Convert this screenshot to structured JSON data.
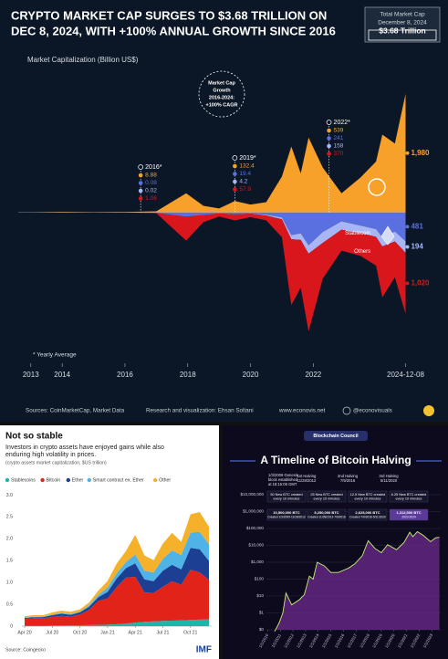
{
  "chart_data": [
    {
      "type": "area",
      "title": [
        "CRYPTO MARKET CAP SURGES TO $3.68 TRILLION ON",
        "DEC 8, 2024, WITH +100% ANNUAL GROWTH SINCE 2016"
      ],
      "total_box": [
        "Total Market Cap",
        "December 8, 2024",
        "$3.68 Trillion"
      ],
      "subtitle": "Market Capitalization (Billion US$)",
      "growth_note": [
        "Market Cap",
        "Growth",
        "2016-2024:",
        "+100% CAGR"
      ],
      "footnote": "* Yearly Average",
      "sources": "Sources: CoinMarketCap, Market Data",
      "credit": "Research and visualization: Ehsan Soltani",
      "website": "www.econovis.net",
      "handle": "@econovisuals",
      "x": [
        2013,
        2014,
        2015,
        2016,
        2017,
        2017.95,
        2018.5,
        2019,
        2019.5,
        2020,
        2020.5,
        2021,
        2021.3,
        2021.6,
        2021.85,
        2022.3,
        2022.9,
        2023.5,
        2024,
        2024.2,
        2024.6,
        2024.94
      ],
      "xlim": [
        2012.6,
        2025.1
      ],
      "xticks": [
        2013,
        2014,
        2016,
        2018,
        2020,
        2022,
        {
          "value": 2024.94,
          "label": "2024-12-08"
        }
      ],
      "ylim": [
        -2400,
        2100
      ],
      "series": [
        {
          "color": "#f7a12b",
          "side": "above",
          "values": [
            1.5,
            8,
            3.5,
            7,
            17,
            320,
            110,
            65,
            190,
            130,
            170,
            600,
            1100,
            650,
            1250,
            750,
            320,
            580,
            850,
            1300,
            1150,
            1980
          ],
          "value_labels": [
            null,
            null,
            null,
            null,
            null,
            null,
            null,
            null,
            null,
            null,
            null,
            null,
            null,
            null,
            null,
            null,
            null,
            null,
            null,
            null,
            null,
            "1,980"
          ]
        },
        {
          "color": "#5a6fe0",
          "side": "below",
          "values": [
            0,
            0,
            0,
            0.9,
            9,
            70,
            40,
            15,
            30,
            15,
            40,
            85,
            380,
            350,
            550,
            330,
            150,
            220,
            280,
            420,
            320,
            481
          ]
        },
        {
          "name": "Stablecoin",
          "color": "#a9b6f5",
          "side": "below",
          "values": [
            0,
            0,
            0,
            0.01,
            1,
            1.5,
            2.5,
            4,
            4,
            5,
            12,
            30,
            70,
            110,
            140,
            180,
            140,
            125,
            130,
            150,
            165,
            194
          ]
        },
        {
          "name": "Others",
          "color": "#d9161c",
          "side": "below",
          "values": [
            0.2,
            0.7,
            0.5,
            0.4,
            5,
            400,
            120,
            50,
            100,
            60,
            80,
            300,
            1100,
            800,
            1300,
            600,
            350,
            380,
            480,
            850,
            600,
            1020
          ],
          "value_labels": [
            null,
            null,
            null,
            null,
            null,
            null,
            null,
            null,
            null,
            null,
            null,
            null,
            null,
            null,
            null,
            null,
            null,
            null,
            null,
            null,
            null,
            "1,020"
          ]
        }
      ],
      "annotations": [
        {
          "label": "2016*",
          "x": 2016.5,
          "values": [
            8.88,
            0.08,
            0.02,
            1.06
          ]
        },
        {
          "label": "2019*",
          "x": 2019.5,
          "values": [
            132.4,
            19.4,
            4.2,
            57.9
          ]
        },
        {
          "label": "2022*",
          "x": 2022.5,
          "values": [
            539,
            241,
            158,
            370
          ]
        }
      ]
    },
    {
      "type": "area",
      "title": "Not so stable",
      "subtitle": [
        "Investors in crypto assets have enjoyed gains while also",
        "enduring high volatility in prices."
      ],
      "note": "(crypto assets market capitalization, $US trillion)",
      "source": "Source: Coingecko",
      "logo": "IMF",
      "grid": false,
      "categories": [
        "Apr 20",
        null,
        null,
        "Jul 20",
        null,
        null,
        "Oct 20",
        null,
        null,
        "Jan 21",
        null,
        null,
        "Apr 21",
        null,
        null,
        "Jul 21",
        null,
        null,
        "Oct 21",
        null,
        null
      ],
      "ylim": [
        0,
        3.05
      ],
      "yticks": [
        0,
        0.5,
        {
          "value": 1,
          "label": "1.0"
        },
        1.5,
        {
          "value": 2,
          "label": "2.0"
        },
        2.5,
        {
          "value": 3,
          "label": "3.0"
        }
      ],
      "series": [
        {
          "name": "Stablecoins",
          "color": "#1fb5a8",
          "values": [
            0.008,
            0.01,
            0.011,
            0.012,
            0.014,
            0.018,
            0.02,
            0.024,
            0.028,
            0.033,
            0.045,
            0.06,
            0.08,
            0.1,
            0.11,
            0.12,
            0.125,
            0.13,
            0.14,
            0.15,
            0.155
          ]
        },
        {
          "name": "Bitcoin",
          "color": "#e2231a",
          "values": [
            0.16,
            0.17,
            0.17,
            0.2,
            0.22,
            0.2,
            0.25,
            0.35,
            0.55,
            0.6,
            0.85,
            1.05,
            1.05,
            0.67,
            0.65,
            0.78,
            0.9,
            0.82,
            1.15,
            1.08,
            0.9
          ]
        },
        {
          "name": "Ether",
          "color": "#1c3f94",
          "values": [
            0.02,
            0.025,
            0.025,
            0.04,
            0.05,
            0.04,
            0.045,
            0.07,
            0.085,
            0.15,
            0.2,
            0.22,
            0.31,
            0.3,
            0.27,
            0.37,
            0.38,
            0.35,
            0.5,
            0.53,
            0.44
          ]
        },
        {
          "name": "Smart contract ex. Ether",
          "color": "#4fb3e8",
          "values": [
            0.01,
            0.01,
            0.01,
            0.015,
            0.02,
            0.02,
            0.02,
            0.03,
            0.05,
            0.1,
            0.12,
            0.14,
            0.2,
            0.2,
            0.2,
            0.27,
            0.33,
            0.33,
            0.35,
            0.4,
            0.38
          ]
        },
        {
          "name": "Other",
          "color": "#f6b12a",
          "values": [
            0.03,
            0.035,
            0.035,
            0.045,
            0.05,
            0.05,
            0.05,
            0.07,
            0.1,
            0.15,
            0.22,
            0.25,
            0.45,
            0.35,
            0.28,
            0.35,
            0.4,
            0.3,
            0.42,
            0.45,
            0.4
          ]
        }
      ]
    },
    {
      "type": "line",
      "title": "A Timeline of Bitcoin Halving",
      "badge": "Blockchain Council",
      "log": true,
      "grid": true,
      "genesis": [
        "1/3/2009 Genesis",
        "block established",
        "at 18:15:05 GMT"
      ],
      "halvings": [
        [
          "1st Halving",
          "11/28/2012"
        ],
        [
          "2nd Halving",
          "7/9/2016"
        ],
        [
          "3rd Halving",
          "5/11/2020"
        ]
      ],
      "rewards": [
        [
          "50 New BTC created",
          "every 10 minutes"
        ],
        [
          "25 New BTC created",
          "every 10 minutes"
        ],
        [
          "12.5 New BTC created",
          "every 10 minutes"
        ],
        [
          "6.25 New BTC created",
          "every 10 minutes"
        ]
      ],
      "supply": [
        [
          "10,500,000 BTC",
          "Created 1/3/2009-11/28/2012"
        ],
        [
          "5,250,000 BTC",
          "Created 11/28/2012-7/9/2016"
        ],
        [
          "2,625,000 BTC",
          "Created 7/9/2016-5/11/2020"
        ],
        [
          "1,312,500 BTC",
          "2020-2024"
        ]
      ],
      "x": [
        2010.55,
        2010.9,
        2011.2,
        2011.45,
        2011.9,
        2012.5,
        2012.9,
        2013.3,
        2013.6,
        2013.92,
        2014.5,
        2015.0,
        2015.6,
        2016.4,
        2016.9,
        2017.5,
        2017.96,
        2018.5,
        2019.0,
        2019.5,
        2020.2,
        2020.8,
        2021.25,
        2021.5,
        2021.85,
        2022.3,
        2022.9,
        2023.3,
        2023.6
      ],
      "xlim": [
        2009.9,
        2023.7
      ],
      "xticks": [
        {
          "value": 2010,
          "label": "1/1/2010"
        },
        {
          "value": 2011,
          "label": "1/1/2011"
        },
        {
          "value": 2012,
          "label": "1/1/2012"
        },
        {
          "value": 2013,
          "label": "1/1/2013"
        },
        {
          "value": 2014,
          "label": "1/1/2014"
        },
        {
          "value": 2015,
          "label": "1/1/2015"
        },
        {
          "value": 2016,
          "label": "1/1/2016"
        },
        {
          "value": 2017,
          "label": "1/1/2017"
        },
        {
          "value": 2018,
          "label": "1/1/2018"
        },
        {
          "value": 2019,
          "label": "1/1/2019"
        },
        {
          "value": 2020,
          "label": "1/1/2020"
        },
        {
          "value": 2021,
          "label": "1/1/2021"
        },
        {
          "value": 2022,
          "label": "1/1/2022"
        },
        {
          "value": 2023,
          "label": "1/1/2023"
        }
      ],
      "ylim": [
        0.1,
        10000000
      ],
      "yticks": [
        {
          "value": 0.1,
          "label": "$0"
        },
        {
          "value": 1,
          "label": "$1"
        },
        {
          "value": 10,
          "label": "$10"
        },
        {
          "value": 100,
          "label": "$100"
        },
        {
          "value": 1000,
          "label": "$1,000"
        },
        {
          "value": 10000,
          "label": "$10,000"
        },
        {
          "value": 100000,
          "label": "$100,000"
        },
        {
          "value": 1000000,
          "label": "$1,000,000"
        },
        {
          "value": 10000000,
          "label": "$10,000,000"
        }
      ],
      "series": [
        {
          "color": "#c9f07a",
          "fill": "#6d2b8f",
          "values": [
            0.08,
            0.25,
            1,
            15,
            3,
            6,
            12,
            150,
            100,
            1000,
            600,
            250,
            250,
            450,
            800,
            2500,
            19000,
            6500,
            3700,
            11000,
            5500,
            15000,
            60000,
            33000,
            65000,
            40000,
            16500,
            28000,
            30000
          ]
        }
      ]
    }
  ]
}
